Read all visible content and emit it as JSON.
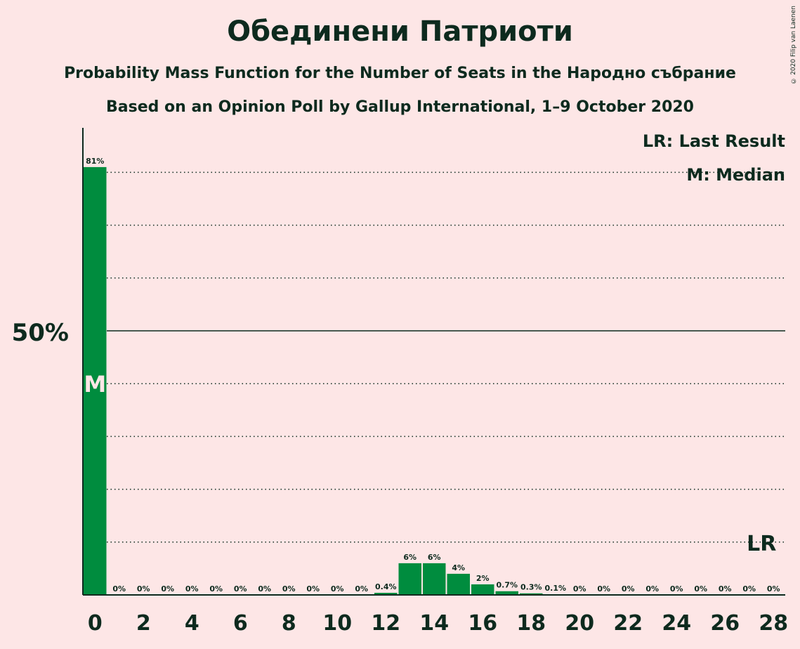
{
  "title": "Обединени Патриоти",
  "subtitle1": "Probability Mass Function for the Number of Seats in the Народно събрание",
  "subtitle2": "Based on an Opinion Poll by Gallup International, 1–9 October 2020",
  "copyright": "© 2020 Filip van Laenen",
  "legend": {
    "lr": "LR: Last Result",
    "median": "M: Median"
  },
  "colors": {
    "bar": "#008c3e",
    "background": "#fde6e6",
    "text": "#0d2a1e"
  },
  "chart_data": {
    "type": "bar",
    "categories": [
      0,
      1,
      2,
      3,
      4,
      5,
      6,
      7,
      8,
      9,
      10,
      11,
      12,
      13,
      14,
      15,
      16,
      17,
      18,
      19,
      20,
      21,
      22,
      23,
      24,
      25,
      26,
      27,
      28
    ],
    "values": [
      81,
      0,
      0,
      0,
      0,
      0,
      0,
      0,
      0,
      0,
      0,
      0,
      0.4,
      6,
      6,
      4,
      2,
      0.7,
      0.3,
      0.1,
      0,
      0,
      0,
      0,
      0,
      0,
      0,
      0,
      0
    ],
    "value_labels": [
      "81%",
      "0%",
      "0%",
      "0%",
      "0%",
      "0%",
      "0%",
      "0%",
      "0%",
      "0%",
      "0%",
      "0%",
      "0.4%",
      "6%",
      "6%",
      "4%",
      "2%",
      "0.7%",
      "0.3%",
      "0.1%",
      "0%",
      "0%",
      "0%",
      "0%",
      "0%",
      "0%",
      "0%",
      "0%",
      "0%"
    ],
    "x_tick_labels": [
      "0",
      "2",
      "4",
      "6",
      "8",
      "10",
      "12",
      "14",
      "16",
      "18",
      "20",
      "22",
      "24",
      "26",
      "28"
    ],
    "y_tick_label": "50%",
    "ylim": [
      0,
      88
    ],
    "gridlines": [
      10,
      20,
      30,
      40,
      60,
      70,
      80
    ],
    "median_seat": 0,
    "median_marker": "M",
    "last_result_seat": 28,
    "last_result_marker": "LR",
    "legend_position": "top-right"
  }
}
